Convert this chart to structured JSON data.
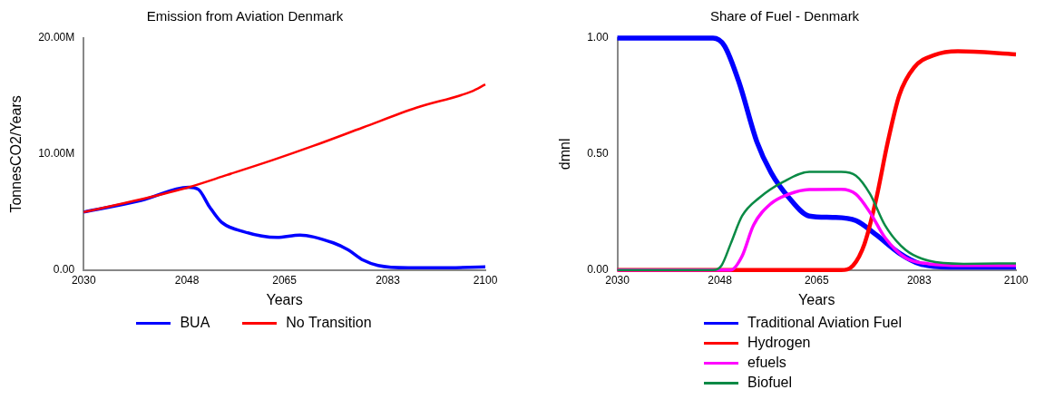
{
  "chart_data": [
    {
      "type": "line",
      "title": "Emission from Aviation Denmark",
      "xlabel": "Years",
      "ylabel": "TonnesCO2/Years",
      "xlim": [
        2030,
        2100
      ],
      "ylim": [
        0,
        20000000
      ],
      "xticks": [
        2030,
        2048,
        2065,
        2083,
        2100
      ],
      "yticks": [
        {
          "value": 0,
          "label": "0.00"
        },
        {
          "value": 10000000,
          "label": "10.00M"
        },
        {
          "value": 20000000,
          "label": "20.00M"
        }
      ],
      "grid": false,
      "legend": "bottom",
      "marker": "none",
      "line_style": "solid",
      "series": [
        {
          "name": "BUA",
          "color": "#0000ff",
          "x": [
            2030,
            2040,
            2048.3,
            2050,
            2051.9,
            2054,
            2057.7,
            2063.7,
            2067.7,
            2073.5,
            2076.1,
            2078.7,
            2081.3,
            2086.6,
            2092,
            2100
          ],
          "values": [
            5000000,
            6000000,
            7140000,
            6950000,
            5480000,
            4140000,
            3340000,
            2810000,
            3020000,
            2350000,
            1740000,
            860000,
            400000,
            200000,
            200000,
            270000
          ]
        },
        {
          "name": "No Transition",
          "color": "#ff0000",
          "x": [
            2030,
            2040,
            2048.3,
            2055,
            2063,
            2070,
            2078.7,
            2088,
            2097.6,
            2100
          ],
          "values": [
            5000000,
            6100000,
            7140000,
            8200000,
            9490000,
            10700000,
            12300000,
            14000000,
            15400000,
            16000000
          ]
        }
      ]
    },
    {
      "type": "line",
      "title": "Share of Fuel - Denmark",
      "xlabel": "Years",
      "ylabel": "dmnl",
      "xlim": [
        2030,
        2100
      ],
      "ylim": [
        0,
        1
      ],
      "xticks": [
        2030,
        2048,
        2065,
        2083,
        2100
      ],
      "yticks": [
        {
          "value": 0,
          "label": "0.00"
        },
        {
          "value": 0.5,
          "label": "0.50"
        },
        {
          "value": 1,
          "label": "1.00"
        }
      ],
      "grid": false,
      "legend": "bottom",
      "marker": "none",
      "line_style": "solid",
      "series": [
        {
          "name": "Traditional Aviation Fuel",
          "color": "#0000ff",
          "x": [
            2030,
            2046.8,
            2048.8,
            2051.4,
            2054.5,
            2057,
            2060.1,
            2063.7,
            2067.8,
            2071.9,
            2075.4,
            2079.5,
            2083.1,
            2088.2,
            2100
          ],
          "values": [
            1,
            1,
            0.967,
            0.807,
            0.553,
            0.42,
            0.313,
            0.233,
            0.227,
            0.213,
            0.153,
            0.073,
            0.027,
            0.013,
            0.013
          ]
        },
        {
          "name": "Hydrogen",
          "color": "#ff0000",
          "x": [
            2030,
            2069.3,
            2071.4,
            2073.4,
            2075.4,
            2077.5,
            2079.5,
            2082.1,
            2085.7,
            2089.8,
            2100
          ],
          "values": [
            0,
            0,
            0.02,
            0.113,
            0.3,
            0.553,
            0.753,
            0.873,
            0.927,
            0.943,
            0.93
          ]
        },
        {
          "name": "efuels",
          "color": "#ff00ff",
          "x": [
            2030,
            2049.9,
            2051.9,
            2053.9,
            2057,
            2060.1,
            2063.7,
            2069.3,
            2071.9,
            2074.4,
            2077,
            2080.6,
            2084.7,
            2090.8,
            2100
          ],
          "values": [
            0,
            0,
            0.06,
            0.193,
            0.287,
            0.327,
            0.347,
            0.348,
            0.327,
            0.247,
            0.14,
            0.053,
            0.027,
            0.02,
            0.02
          ]
        },
        {
          "name": "Biofuel",
          "color": "#0a8a45",
          "x": [
            2030,
            2046.8,
            2048.3,
            2049.9,
            2051.9,
            2055,
            2059.1,
            2063.7,
            2069.3,
            2071.9,
            2074.4,
            2077,
            2080.6,
            2084.7,
            2090.8,
            2100
          ],
          "values": [
            0,
            0,
            0.02,
            0.113,
            0.233,
            0.313,
            0.38,
            0.423,
            0.423,
            0.407,
            0.327,
            0.193,
            0.087,
            0.04,
            0.027,
            0.029
          ]
        }
      ]
    }
  ]
}
